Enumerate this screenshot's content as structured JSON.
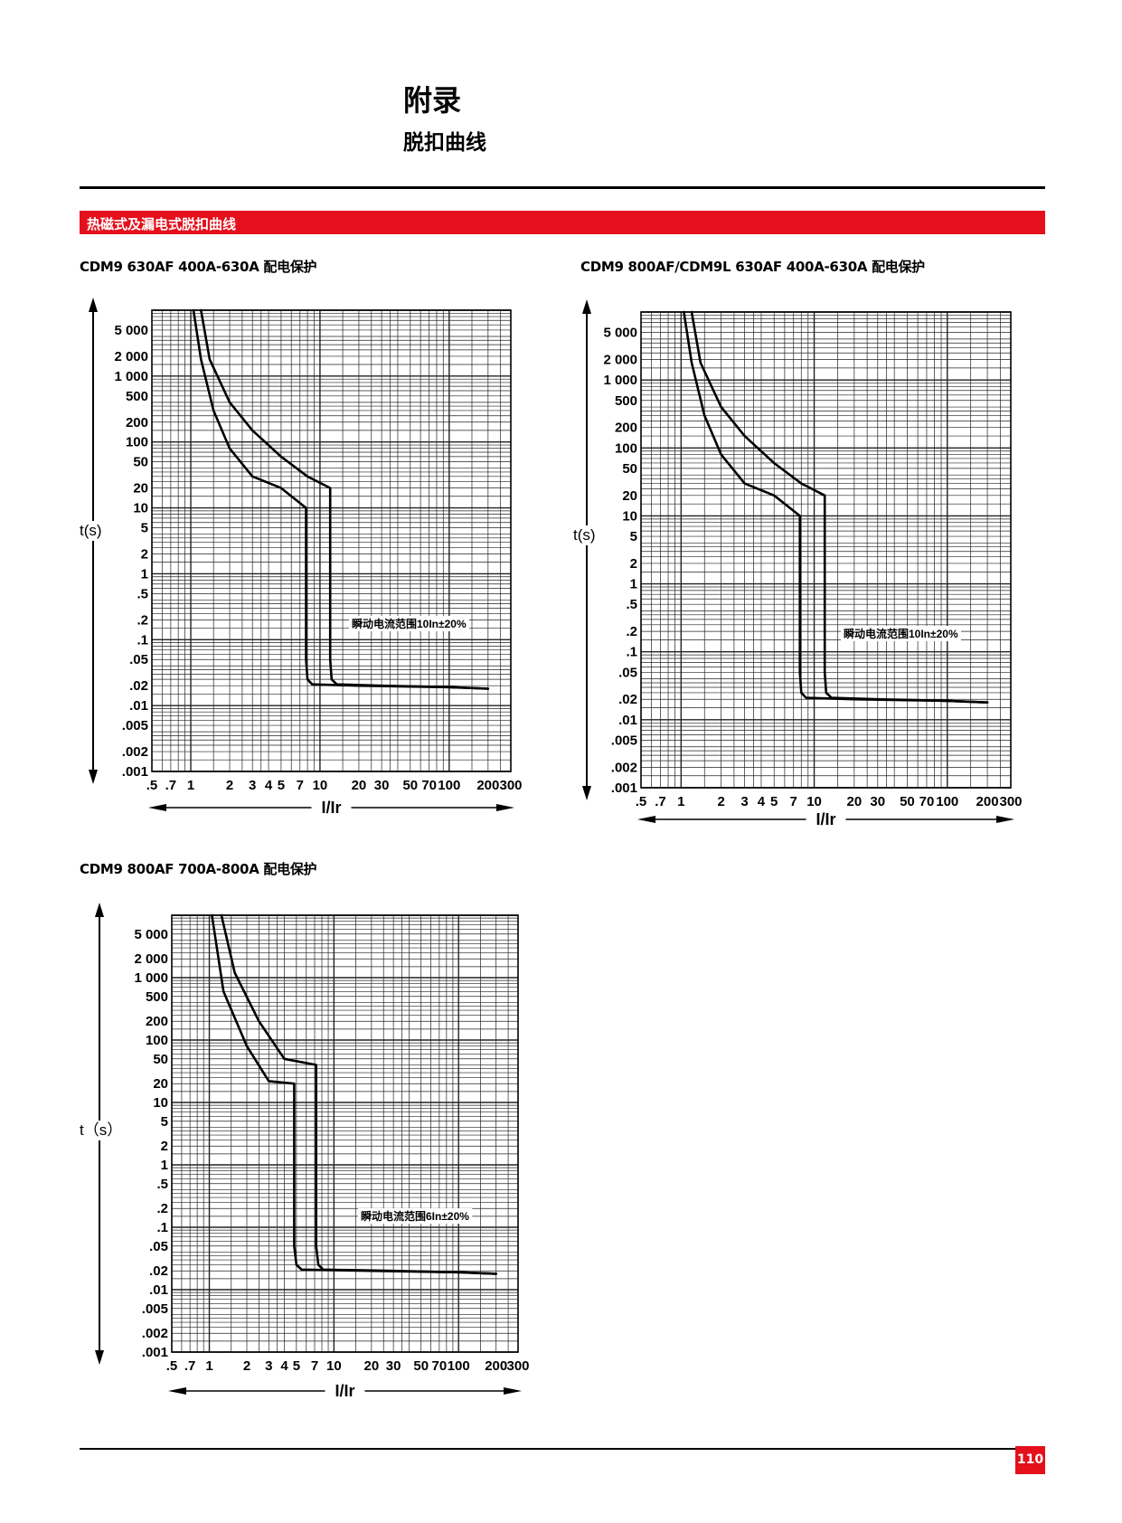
{
  "header": {
    "title": "附录",
    "subtitle": "脱扣曲线"
  },
  "section": {
    "label": "热磁式及漏电式脱扣曲线"
  },
  "page_number": "110",
  "colors": {
    "accent": "#e4101c",
    "grid": "#222222",
    "curve": "#000000"
  },
  "chart_data": [
    {
      "type": "line",
      "caption": "CDM9  630AF 400A-630A 配电保护",
      "ylabel": "t(s)",
      "xlabel": "I/Ir",
      "x_scale": "log",
      "y_scale": "log",
      "xlim": [
        0.5,
        300
      ],
      "ylim": [
        0.001,
        10000
      ],
      "x_ticks": [
        ".5",
        ".7",
        "1",
        "2",
        "3",
        "4",
        "5",
        "7",
        "10",
        "20",
        "30",
        "50",
        "70",
        "100",
        "200",
        "300"
      ],
      "y_ticks": [
        "5 000",
        "2 000",
        "1 000",
        "500",
        "200",
        "100",
        "50",
        "20",
        "10",
        "5",
        "2",
        "1",
        ".5",
        ".2",
        ".1",
        ".05",
        ".02",
        ".01",
        ".005",
        ".002",
        ".001"
      ],
      "annotation": "瞬动电流范围10In±20%",
      "series": [
        {
          "x": [
            1.05,
            1.2,
            1.5,
            2,
            3,
            5,
            7.8,
            7.8,
            8.0,
            8.7,
            20,
            100,
            200
          ],
          "y": [
            10000,
            1800,
            300,
            80,
            30,
            20,
            10,
            0.05,
            0.025,
            0.021,
            0.02,
            0.019,
            0.018
          ]
        },
        {
          "x": [
            1.2,
            1.4,
            2,
            3,
            5,
            8,
            12,
            12,
            12.3,
            13.5,
            30,
            100,
            200
          ],
          "y": [
            10000,
            1800,
            400,
            150,
            60,
            30,
            20,
            0.05,
            0.025,
            0.021,
            0.02,
            0.019,
            0.018
          ]
        }
      ]
    },
    {
      "type": "line",
      "caption": "CDM9 800AF/CDM9L 630AF 400A-630A 配电保护",
      "ylabel": "t(s)",
      "xlabel": "I/Ir",
      "x_scale": "log",
      "y_scale": "log",
      "xlim": [
        0.5,
        300
      ],
      "ylim": [
        0.001,
        10000
      ],
      "x_ticks": [
        ".5",
        ".7",
        "1",
        "2",
        "3",
        "4",
        "5",
        "7",
        "10",
        "20",
        "30",
        "50",
        "70",
        "100",
        "200",
        "300"
      ],
      "y_ticks": [
        "5 000",
        "2 000",
        "1 000",
        "500",
        "200",
        "100",
        "50",
        "20",
        "10",
        "5",
        "2",
        "1",
        ".5",
        ".2",
        ".1",
        ".05",
        ".02",
        ".01",
        ".005",
        ".002",
        ".001"
      ],
      "annotation": "瞬动电流范围10In±20%",
      "series": [
        {
          "x": [
            1.05,
            1.2,
            1.5,
            2,
            3,
            5,
            7.8,
            7.8,
            8.0,
            8.7,
            20,
            100,
            200
          ],
          "y": [
            10000,
            1800,
            300,
            80,
            30,
            20,
            10,
            0.05,
            0.025,
            0.021,
            0.02,
            0.019,
            0.018
          ]
        },
        {
          "x": [
            1.2,
            1.4,
            2,
            3,
            5,
            8,
            12,
            12,
            12.3,
            13.5,
            30,
            100,
            200
          ],
          "y": [
            10000,
            1800,
            400,
            150,
            60,
            30,
            20,
            0.05,
            0.025,
            0.021,
            0.02,
            0.019,
            0.018
          ]
        }
      ]
    },
    {
      "type": "line",
      "caption": "CDM9 800AF 700A-800A 配电保护",
      "ylabel": "t（s）",
      "xlabel": "I/Ir",
      "x_scale": "log",
      "y_scale": "log",
      "xlim": [
        0.5,
        300
      ],
      "ylim": [
        0.001,
        10000
      ],
      "x_ticks": [
        ".5",
        ".7",
        "1",
        "2",
        "3",
        "4",
        "5",
        "7",
        "10",
        "20",
        "30",
        "50",
        "70",
        "100",
        "200",
        "300"
      ],
      "y_ticks": [
        "5 000",
        "2 000",
        "1 000",
        "500",
        "200",
        "100",
        "50",
        "20",
        "10",
        "5",
        "2",
        "1",
        ".5",
        ".2",
        ".1",
        ".05",
        ".02",
        ".01",
        ".005",
        ".002",
        ".001"
      ],
      "annotation": "瞬动电流范围6In±20%",
      "series": [
        {
          "x": [
            1.05,
            1.3,
            2.0,
            3.0,
            4.8,
            4.8,
            5.0,
            5.5,
            20,
            100,
            200
          ],
          "y": [
            10000,
            600,
            80,
            22,
            20,
            0.05,
            0.025,
            0.021,
            0.02,
            0.019,
            0.018
          ]
        },
        {
          "x": [
            1.25,
            1.6,
            2.5,
            4.0,
            7.2,
            7.2,
            7.5,
            8.2,
            30,
            100,
            200
          ],
          "y": [
            10000,
            1200,
            200,
            50,
            40,
            0.05,
            0.025,
            0.021,
            0.02,
            0.019,
            0.018
          ]
        }
      ]
    }
  ]
}
